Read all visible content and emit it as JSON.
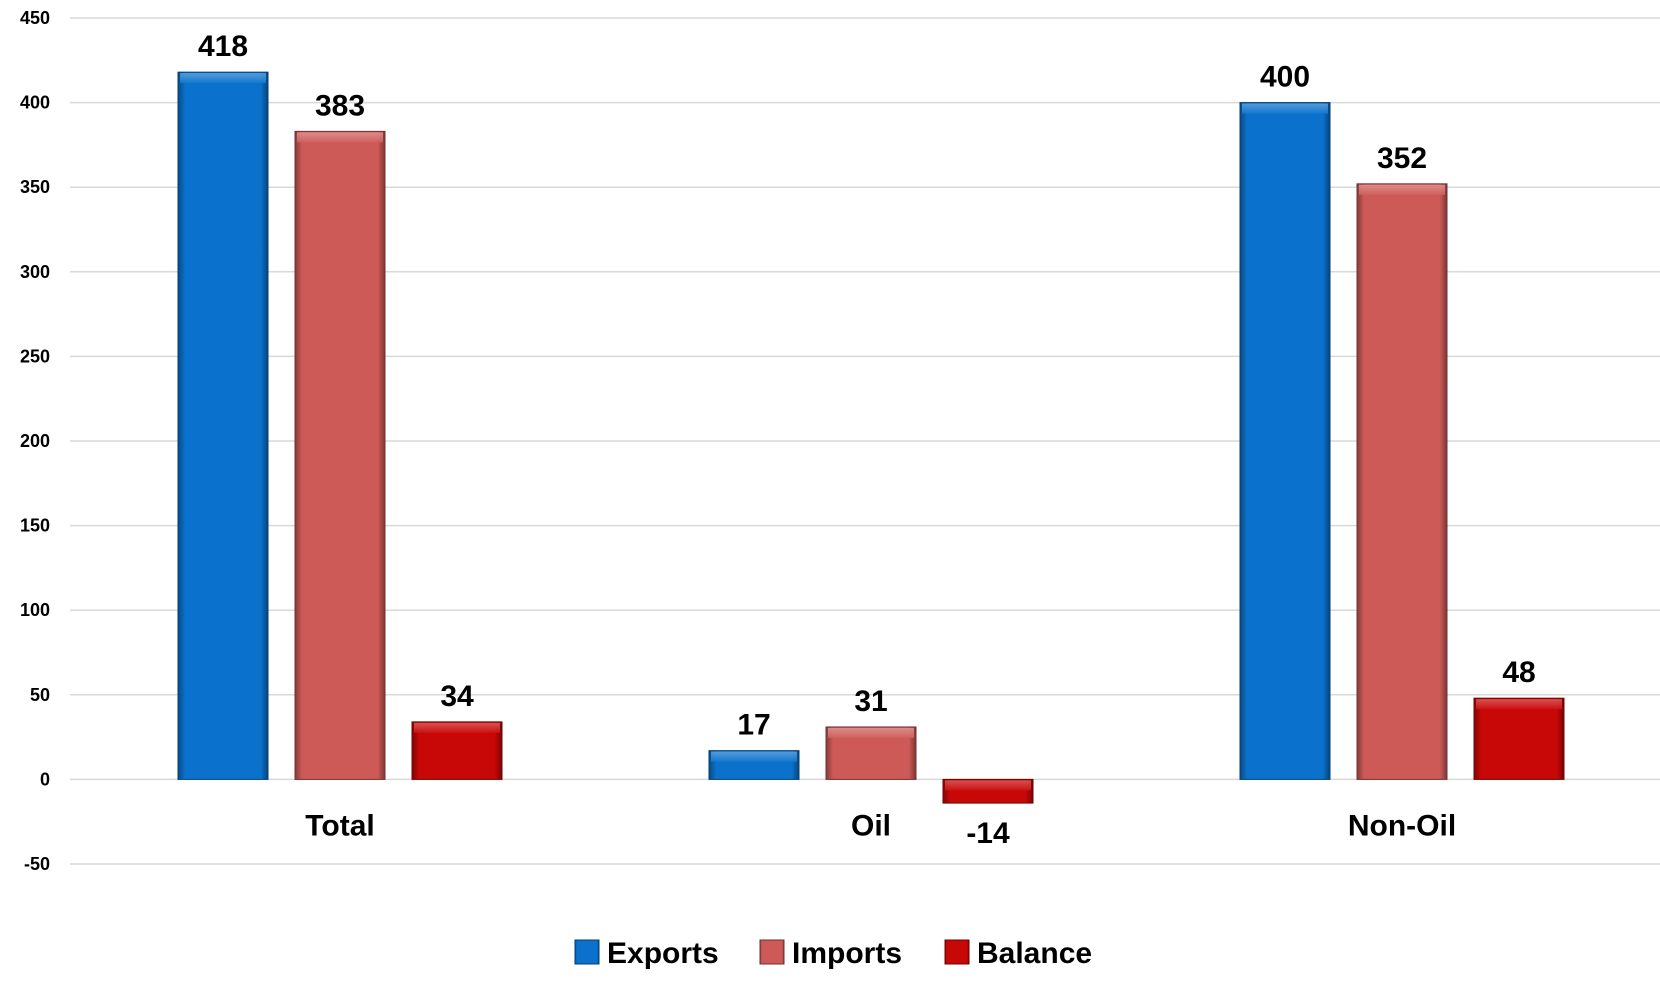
{
  "chart_data": {
    "type": "bar",
    "categories": [
      "Total",
      "Oil",
      "Non-Oil"
    ],
    "series": [
      {
        "name": "Exports",
        "values": [
          418,
          17,
          400
        ],
        "color": "#0a72cc"
      },
      {
        "name": "Imports",
        "values": [
          383,
          31,
          352
        ],
        "color": "#cd5a57"
      },
      {
        "name": "Balance",
        "values": [
          34,
          -14,
          48
        ],
        "color": "#c80707"
      }
    ],
    "ylim": [
      -50,
      450
    ],
    "yticks": [
      -50,
      0,
      50,
      100,
      150,
      200,
      250,
      300,
      350,
      400,
      450
    ],
    "grid": true,
    "legend_position": "bottom",
    "title": "",
    "xlabel": "",
    "ylabel": ""
  }
}
